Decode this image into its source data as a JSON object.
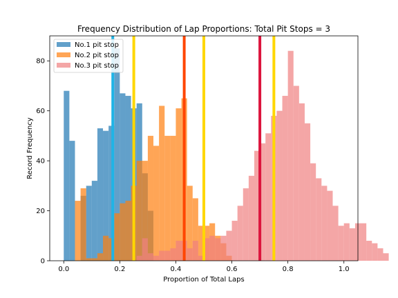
{
  "chart_data": {
    "type": "bar",
    "subtype": "histogram-overlay",
    "title": "Frequency Distribution of Lap Proportions: Total Pit Stops = 3",
    "xlabel": "Proportion of Total Laps",
    "ylabel": "Record Frequency",
    "xlim": [
      -0.05,
      1.05
    ],
    "ylim": [
      0,
      90
    ],
    "xticks": [
      0.0,
      0.2,
      0.4,
      0.6,
      0.8,
      1.0
    ],
    "xtick_labels": [
      "0.0",
      "0.2",
      "0.4",
      "0.6",
      "0.8",
      "1.0"
    ],
    "yticks": [
      0,
      20,
      40,
      60,
      80
    ],
    "ytick_labels": [
      "0",
      "20",
      "40",
      "60",
      "80"
    ],
    "grid": false,
    "legend": "top-left",
    "bin_width": 0.02,
    "series": [
      {
        "name": "No.1 pit stop",
        "color": "#1f77b4",
        "alpha": 0.7,
        "start": 0.0,
        "values": [
          68,
          48,
          0,
          26,
          30,
          32,
          53,
          52,
          54,
          85,
          67,
          66,
          61,
          63,
          35,
          20
        ]
      },
      {
        "name": "No.2 pit stop",
        "color": "#ff7f0e",
        "alpha": 0.7,
        "start": 0.04,
        "values": [
          24,
          29,
          1,
          1,
          3,
          10,
          9,
          19,
          23,
          24,
          30,
          40,
          40,
          50,
          46,
          62,
          50,
          50,
          61,
          65,
          30,
          25,
          14,
          14,
          15,
          10,
          7,
          2
        ]
      },
      {
        "name": "No.3 pit stop",
        "color": "#f08080",
        "alpha": 0.7,
        "start": 0.26,
        "values": [
          2,
          9,
          3,
          2,
          4,
          4,
          5,
          8,
          8,
          5,
          8,
          2,
          9,
          10,
          9,
          10,
          12,
          16,
          22,
          29,
          34,
          44,
          47,
          51,
          58,
          60,
          66,
          84,
          70,
          63,
          55,
          39,
          33,
          30,
          28,
          22,
          14,
          15,
          13,
          15,
          15,
          8,
          7,
          5,
          3
        ]
      }
    ],
    "vertical_lines": [
      {
        "x": 0.175,
        "color": "#1fb4e6"
      },
      {
        "x": 0.25,
        "color": "#ffd700"
      },
      {
        "x": 0.43,
        "color": "#ff4500"
      },
      {
        "x": 0.5,
        "color": "#ffd700"
      },
      {
        "x": 0.7,
        "color": "#dc143c"
      },
      {
        "x": 0.75,
        "color": "#ffd700"
      }
    ]
  }
}
